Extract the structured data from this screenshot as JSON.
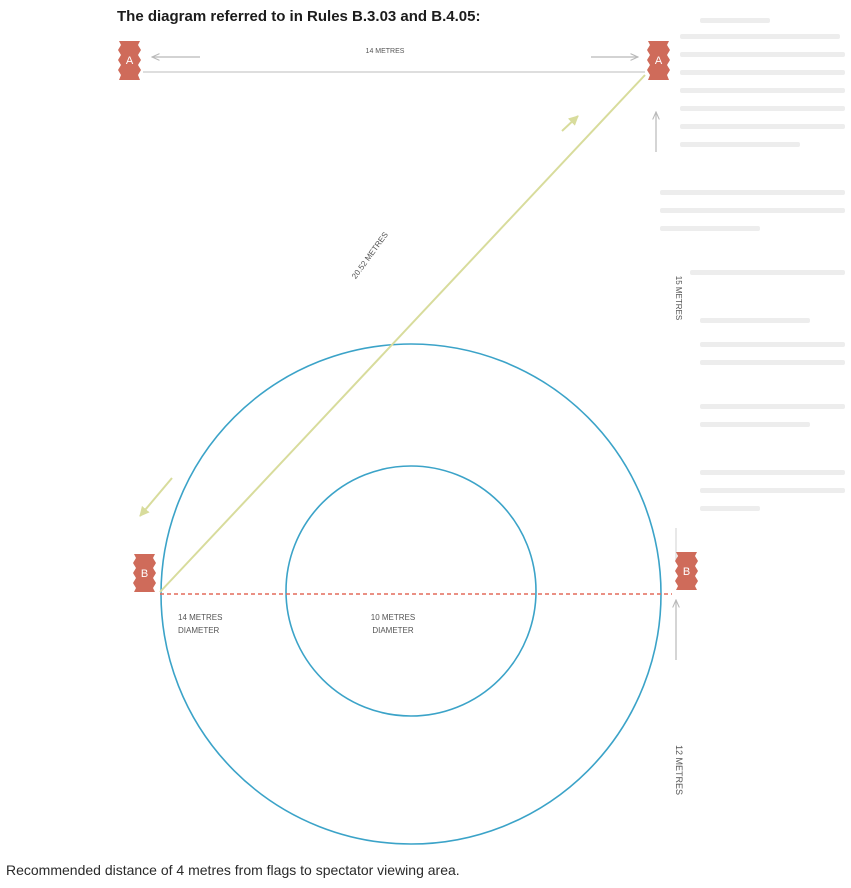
{
  "heading": "The diagram referred to in Rules B.3.03 and B.4.05:",
  "caption": "Recommended distance of 4 metres from flags to spectator viewing area.",
  "flags": {
    "a_left": "A",
    "a_right": "A",
    "b_left": "B",
    "b_right": "B"
  },
  "labels": {
    "top_distance": "14 METRES",
    "diagonal_distance": "20.52 METRES",
    "right_upper_distance": "15 METRES",
    "right_lower_distance": "12 METRES",
    "outer_circle_line1": "14 METRES",
    "outer_circle_line2": "DIAMETER",
    "inner_circle_line1": "10 METRES",
    "inner_circle_line2": "DIAMETER"
  },
  "colors": {
    "flag": "#cf6b5a",
    "circle": "#3ba3c8",
    "path": "#d8dc9c",
    "dashed_line": "#e36b5b",
    "arrow": "#b9b9b9"
  }
}
